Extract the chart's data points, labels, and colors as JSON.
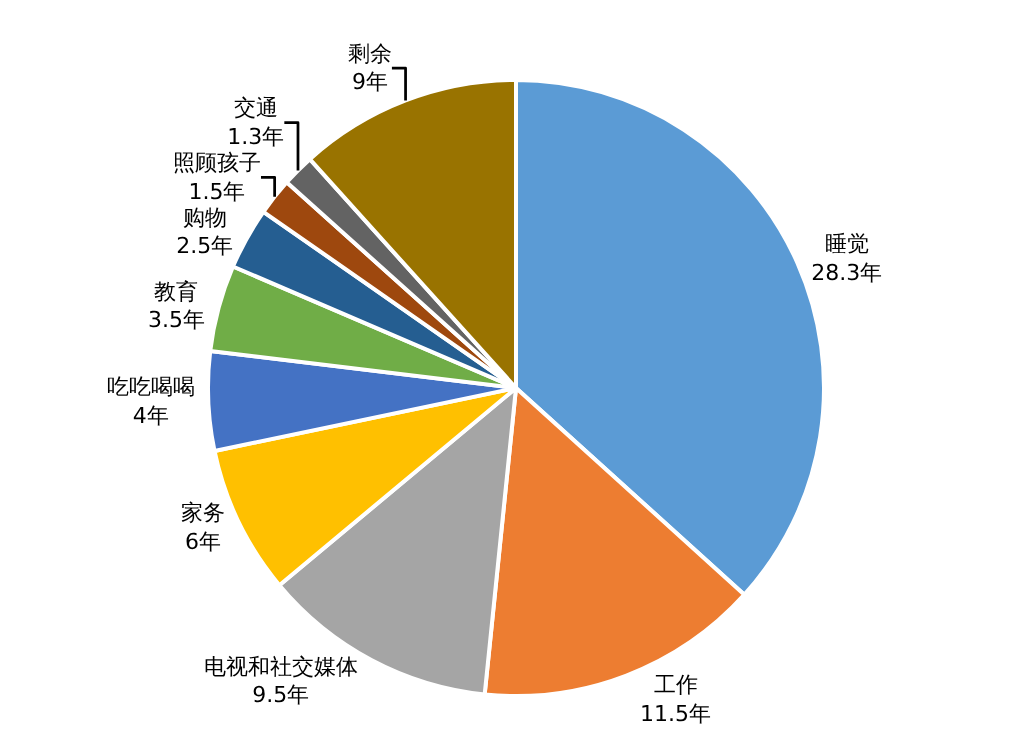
{
  "chart_data": {
    "type": "pie",
    "categories": [
      "睡觉",
      "工作",
      "电视和社交媒体",
      "家务",
      "吃吃喝喝",
      "教育",
      "购物",
      "照顾孩子",
      "交通",
      "剩余"
    ],
    "values": [
      28.3,
      11.5,
      9.5,
      6,
      4,
      3.5,
      2.5,
      1.5,
      1.3,
      9
    ],
    "value_labels": [
      "28.3年",
      "11.5年",
      "9.5年",
      "6年",
      "4年",
      "3.5年",
      "2.5年",
      "1.5年",
      "1.3年",
      "9年"
    ],
    "colors": [
      "#5b9bd5",
      "#ed7d31",
      "#a5a5a5",
      "#ffc000",
      "#4472c4",
      "#70ad47",
      "#255e91",
      "#9e480e",
      "#636363",
      "#997300"
    ],
    "legend": false
  }
}
